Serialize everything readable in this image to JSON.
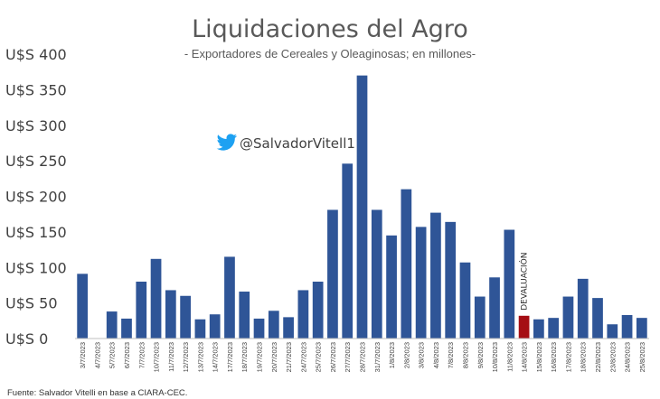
{
  "chart_data": {
    "type": "bar",
    "title": "Liquidaciones del Agro",
    "subtitle": "- Exportadores de Cereales y Oleaginosas; en millones-",
    "yticks": [
      "U$S 0",
      "U$S 50",
      "U$S 100",
      "U$S 150",
      "U$S 200",
      "U$S 250",
      "U$S 300",
      "U$S 350",
      "U$S 400"
    ],
    "ylim": [
      0,
      400
    ],
    "categories": [
      "3/7/2023",
      "4/7/2023",
      "5/7/2023",
      "6/7/2023",
      "7/7/2023",
      "10/7/2023",
      "11/7/2023",
      "12/7/2023",
      "13/7/2023",
      "14/7/2023",
      "17/7/2023",
      "18/7/2023",
      "19/7/2023",
      "20/7/2023",
      "21/7/2023",
      "24/7/2023",
      "25/7/2023",
      "26/7/2023",
      "27/7/2023",
      "28/7/2023",
      "31/7/2023",
      "1/8/2023",
      "2/8/2023",
      "3/8/2023",
      "4/8/2023",
      "7/8/2023",
      "8/8/2023",
      "9/8/2023",
      "10/8/2023",
      "11/8/2023",
      "14/8/2023",
      "15/8/2023",
      "16/8/2023",
      "17/8/2023",
      "18/8/2023",
      "22/8/2023",
      "23/8/2023",
      "24/8/2023",
      "25/8/2023"
    ],
    "values": [
      91,
      0,
      38,
      28,
      80,
      112,
      68,
      60,
      27,
      34,
      115,
      66,
      28,
      39,
      30,
      68,
      80,
      181,
      246,
      370,
      181,
      145,
      210,
      157,
      177,
      164,
      107,
      59,
      86,
      153,
      32,
      27,
      29,
      59,
      84,
      57,
      20,
      33,
      29
    ],
    "highlight_index": 30,
    "colors": {
      "bar": "#2f5597",
      "highlight": "#a50e14",
      "axis": "#bfbfbf"
    },
    "annotation": "DEVALUACIÓN",
    "grid": false,
    "legend": "none"
  },
  "twitter": {
    "handle": "@SalvadorVitell1",
    "icon": "twitter-bird-icon",
    "color": "#1da1f2"
  },
  "source": "Fuente: Salvador Vitelli en base a CIARA-CEC."
}
